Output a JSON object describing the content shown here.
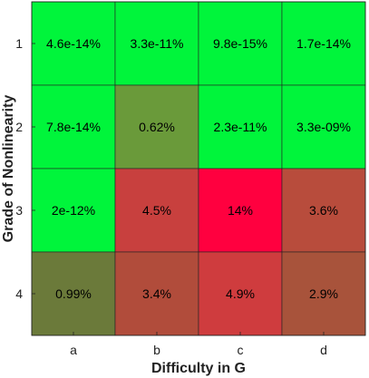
{
  "chart_data": {
    "type": "heatmap",
    "xlabel": "Difficulty in G",
    "ylabel": "Grade of Nonlinearity",
    "x_categories": [
      "a",
      "b",
      "c",
      "d"
    ],
    "y_categories": [
      "1",
      "2",
      "3",
      "4"
    ],
    "cells": [
      [
        {
          "label": "4.6e-14%",
          "color": "#00f53b"
        },
        {
          "label": "3.3e-11%",
          "color": "#00f53b"
        },
        {
          "label": "9.8e-15%",
          "color": "#00f53b"
        },
        {
          "label": "1.7e-14%",
          "color": "#00f53b"
        }
      ],
      [
        {
          "label": "7.8e-14%",
          "color": "#00f53b"
        },
        {
          "label": "0.62%",
          "color": "#6a9a3a"
        },
        {
          "label": "2.3e-11%",
          "color": "#00f53b"
        },
        {
          "label": "3.3e-09%",
          "color": "#00f53b"
        }
      ],
      [
        {
          "label": "2e-12%",
          "color": "#00f53b"
        },
        {
          "label": "4.5%",
          "color": "#c8403e"
        },
        {
          "label": "14%",
          "color": "#ff003f"
        },
        {
          "label": "3.6%",
          "color": "#b84c3c"
        }
      ],
      [
        {
          "label": "0.99%",
          "color": "#6b7a3a"
        },
        {
          "label": "3.4%",
          "color": "#b14c3b"
        },
        {
          "label": "4.9%",
          "color": "#cf3c3e"
        },
        {
          "label": "2.9%",
          "color": "#a8533b"
        }
      ]
    ]
  }
}
